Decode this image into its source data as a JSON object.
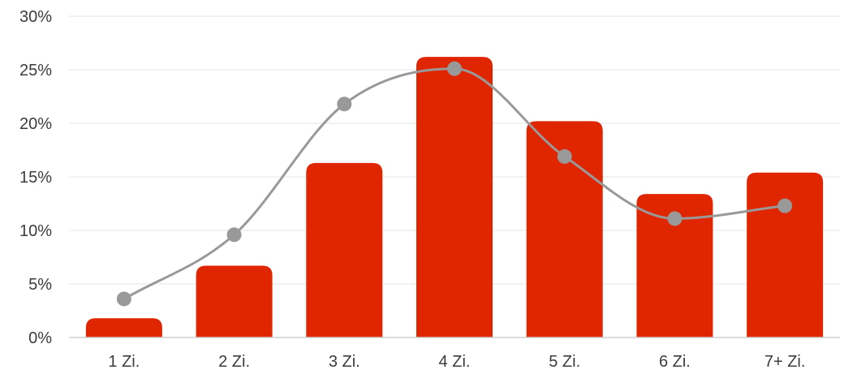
{
  "chart_data": {
    "type": "bar",
    "categories": [
      "1 Zi.",
      "2 Zi.",
      "3 Zi.",
      "4 Zi.",
      "5 Zi.",
      "6 Zi.",
      "7+ Zi."
    ],
    "series": [
      {
        "type": "bar",
        "values": [
          1.8,
          6.7,
          16.3,
          26.2,
          20.2,
          13.4,
          15.4
        ],
        "color": "#e02600"
      },
      {
        "type": "line",
        "smooth": true,
        "values": [
          3.6,
          9.6,
          21.8,
          25.1,
          16.9,
          11.1,
          12.3
        ],
        "color": "#999999"
      }
    ],
    "y_ticks": [
      "0%",
      "5%",
      "10%",
      "15%",
      "20%",
      "25%",
      "30%"
    ],
    "ylim": [
      0,
      30
    ],
    "grid": true,
    "legend": "none"
  }
}
